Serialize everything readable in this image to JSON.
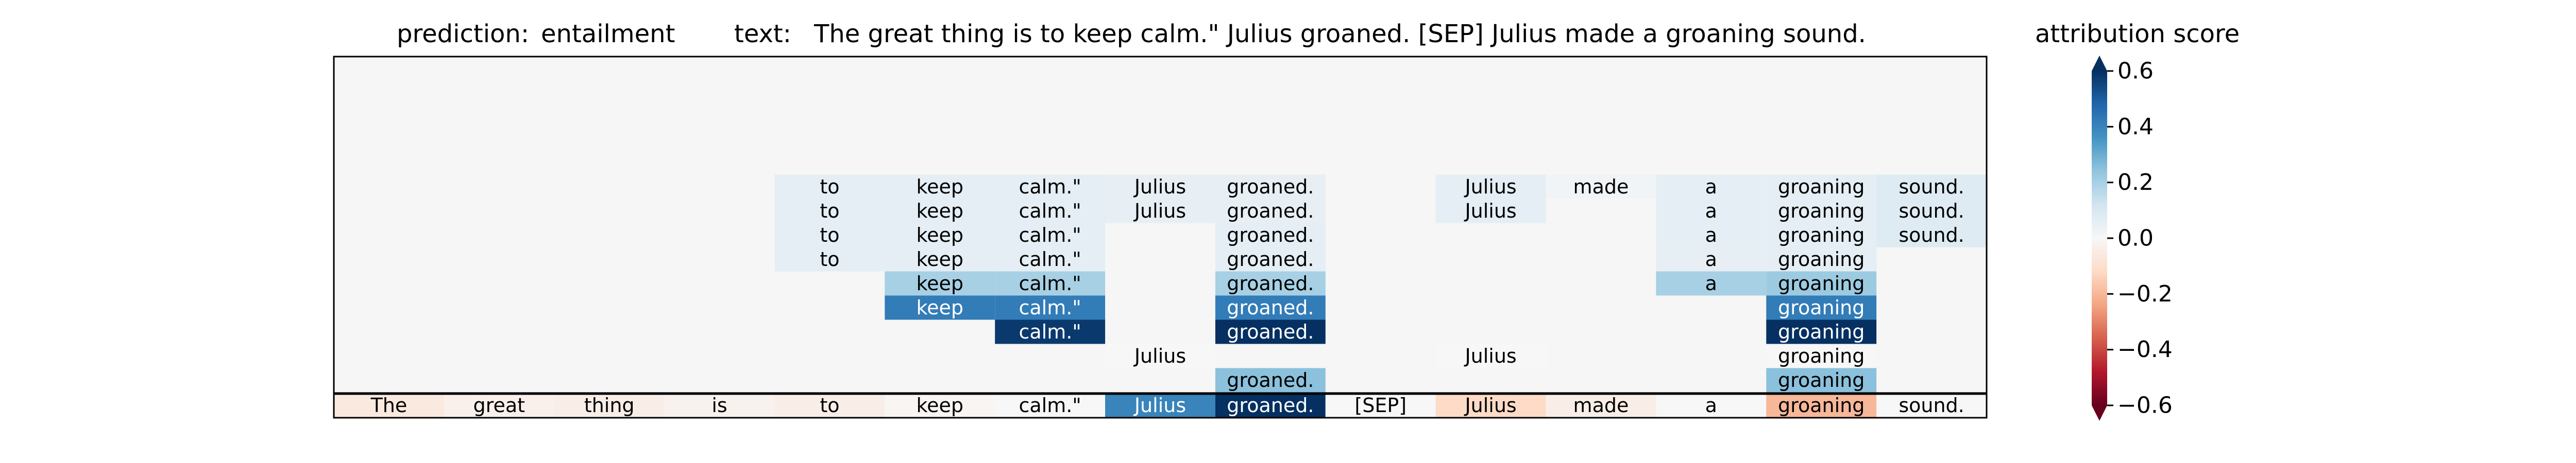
{
  "header": {
    "prediction_label": "prediction:",
    "prediction_value": "entailment",
    "text_label": "text:",
    "text_value": "The great thing is to keep calm.\" Julius groaned. [SEP] Julius made a groaning sound.",
    "colorbar_title": "attribution score"
  },
  "chart_data": {
    "type": "heatmap",
    "tokens": [
      "The",
      "great",
      "thing",
      "is",
      "to",
      "keep",
      "calm.\"",
      "Julius",
      "groaned.",
      "[SEP]",
      "Julius",
      "made",
      "a",
      "groaning",
      "sound."
    ],
    "rows": [
      [
        null,
        null,
        null,
        null,
        0.06,
        0.06,
        0.06,
        0.05,
        0.05,
        null,
        0.06,
        0.02,
        0.06,
        0.06,
        0.08
      ],
      [
        null,
        null,
        null,
        null,
        0.06,
        0.06,
        0.06,
        0.05,
        0.05,
        null,
        0.06,
        null,
        0.06,
        0.06,
        0.08
      ],
      [
        null,
        null,
        null,
        null,
        0.06,
        0.06,
        0.06,
        null,
        0.06,
        null,
        null,
        null,
        0.06,
        0.06,
        0.08
      ],
      [
        null,
        null,
        null,
        null,
        0.06,
        0.06,
        0.06,
        null,
        0.06,
        null,
        null,
        null,
        0.05,
        0.06,
        null
      ],
      [
        null,
        null,
        null,
        null,
        null,
        0.2,
        0.2,
        null,
        0.2,
        null,
        null,
        null,
        0.2,
        0.22,
        null
      ],
      [
        null,
        null,
        null,
        null,
        null,
        0.42,
        0.42,
        null,
        0.42,
        null,
        null,
        null,
        null,
        0.42,
        null
      ],
      [
        null,
        null,
        null,
        null,
        null,
        null,
        0.58,
        null,
        0.6,
        null,
        null,
        null,
        null,
        0.6,
        null
      ],
      [
        null,
        null,
        null,
        null,
        null,
        null,
        null,
        0.0,
        null,
        null,
        0.0,
        null,
        null,
        0.0,
        null
      ],
      [
        null,
        null,
        null,
        null,
        null,
        null,
        null,
        null,
        0.25,
        null,
        null,
        null,
        null,
        0.25,
        null
      ]
    ],
    "bottom_row": [
      -0.06,
      -0.03,
      -0.04,
      -0.02,
      -0.04,
      -0.01,
      0.0,
      0.4,
      0.6,
      0.0,
      -0.12,
      -0.04,
      0.0,
      -0.2,
      0.0
    ],
    "colorbar": {
      "range": [
        -0.6,
        0.6
      ],
      "ticks": [
        0.6,
        0.4,
        0.2,
        0.0,
        -0.2,
        -0.4,
        -0.6
      ],
      "tick_labels": [
        "0.6",
        "0.4",
        "0.2",
        "0.0",
        "−0.2",
        "−0.4",
        "−0.6"
      ],
      "colormap": "RdBu"
    },
    "colors": {
      "panel_background": "#f5f6f5",
      "frame": "#000000"
    }
  }
}
